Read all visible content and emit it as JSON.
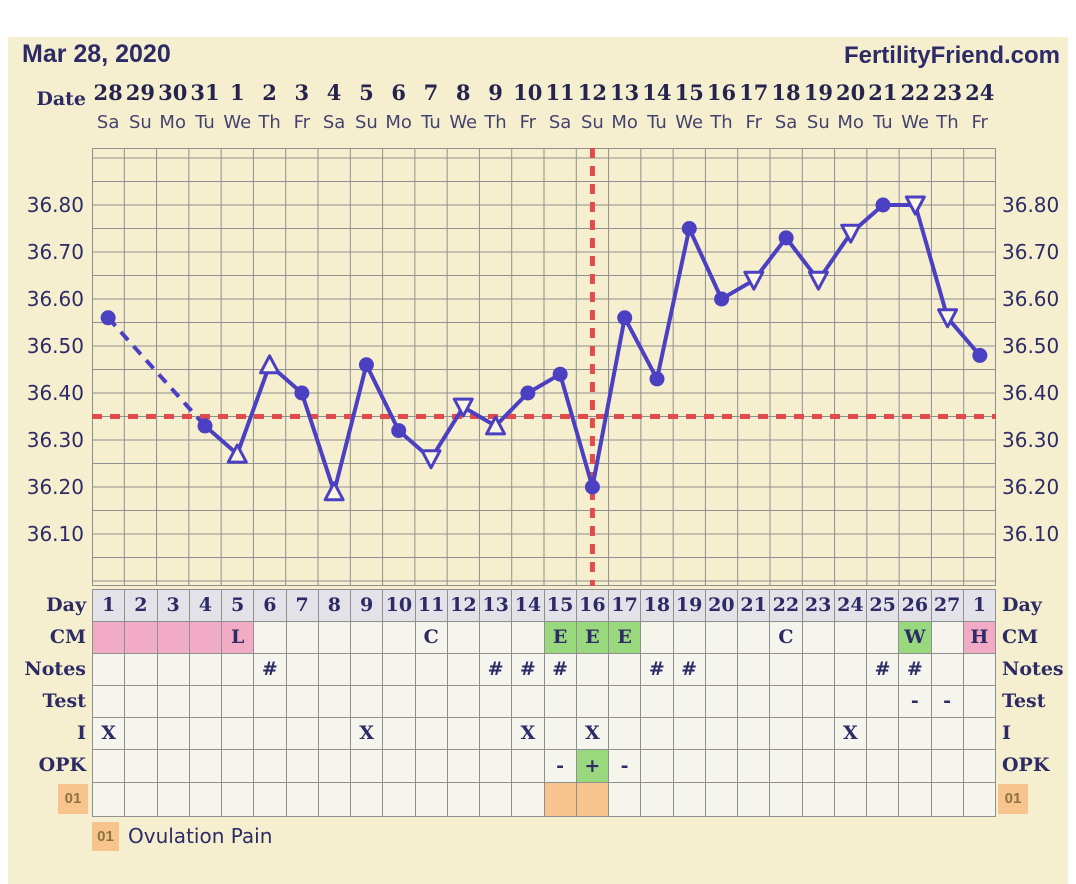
{
  "header": {
    "title": "Mar 28, 2020",
    "brand": "FertilityFriend.com"
  },
  "colors": {
    "page_bg": "#f6efcf",
    "margin_bg": "#ffffff",
    "cell_bg": "#f5f5ee",
    "day_header_bg": "#e4e2e9",
    "pink": "#f2abc4",
    "green": "#99d87d",
    "orange": "#f8c48e",
    "grid": "#8f8f8f",
    "line": "#4c40c2",
    "marker_open_fill": "#fbf6e3",
    "red": "#e14b4b",
    "navy": "#2d2b66"
  },
  "chart_data": {
    "type": "line",
    "x_axis": {
      "label": "Date",
      "dates": [
        "28",
        "29",
        "30",
        "31",
        "1",
        "2",
        "3",
        "4",
        "5",
        "6",
        "7",
        "8",
        "9",
        "10",
        "11",
        "12",
        "13",
        "14",
        "15",
        "16",
        "17",
        "18",
        "19",
        "20",
        "21",
        "22",
        "23",
        "24"
      ],
      "weekdays": [
        "Sa",
        "Su",
        "Mo",
        "Tu",
        "We",
        "Th",
        "Fr",
        "Sa",
        "Su",
        "Mo",
        "Tu",
        "We",
        "Th",
        "Fr",
        "Sa",
        "Su",
        "Mo",
        "Tu",
        "We",
        "Th",
        "Fr",
        "Sa",
        "Su",
        "Mo",
        "Tu",
        "We",
        "Th",
        "Fr"
      ]
    },
    "y_axis": {
      "tick_labels": [
        "36.80",
        "36.70",
        "36.60",
        "36.50",
        "36.40",
        "36.30",
        "36.20",
        "36.10"
      ],
      "ylim": [
        36.0,
        36.92
      ],
      "grid_step": 0.05,
      "labels_on_both_sides": true
    },
    "coverline_temp": 36.35,
    "ovulation_line_day": 16,
    "missing_days": [
      2,
      3
    ],
    "dashed_segment_days": [
      1,
      4
    ],
    "points": [
      {
        "day": 1,
        "temp": 36.56,
        "marker": "circle"
      },
      {
        "day": 4,
        "temp": 36.33,
        "marker": "circle"
      },
      {
        "day": 5,
        "temp": 36.27,
        "marker": "triangle-up"
      },
      {
        "day": 6,
        "temp": 36.46,
        "marker": "triangle-up"
      },
      {
        "day": 7,
        "temp": 36.4,
        "marker": "circle"
      },
      {
        "day": 8,
        "temp": 36.19,
        "marker": "triangle-up"
      },
      {
        "day": 9,
        "temp": 36.46,
        "marker": "circle"
      },
      {
        "day": 10,
        "temp": 36.32,
        "marker": "circle"
      },
      {
        "day": 11,
        "temp": 36.26,
        "marker": "triangle-down"
      },
      {
        "day": 12,
        "temp": 36.37,
        "marker": "triangle-down"
      },
      {
        "day": 13,
        "temp": 36.33,
        "marker": "triangle-up"
      },
      {
        "day": 14,
        "temp": 36.4,
        "marker": "circle"
      },
      {
        "day": 15,
        "temp": 36.44,
        "marker": "circle"
      },
      {
        "day": 16,
        "temp": 36.2,
        "marker": "circle"
      },
      {
        "day": 17,
        "temp": 36.56,
        "marker": "circle"
      },
      {
        "day": 18,
        "temp": 36.43,
        "marker": "circle"
      },
      {
        "day": 19,
        "temp": 36.75,
        "marker": "circle"
      },
      {
        "day": 20,
        "temp": 36.6,
        "marker": "circle"
      },
      {
        "day": 21,
        "temp": 36.64,
        "marker": "triangle-down"
      },
      {
        "day": 22,
        "temp": 36.73,
        "marker": "circle"
      },
      {
        "day": 23,
        "temp": 36.64,
        "marker": "triangle-down"
      },
      {
        "day": 24,
        "temp": 36.74,
        "marker": "triangle-down"
      },
      {
        "day": 25,
        "temp": 36.8,
        "marker": "circle"
      },
      {
        "day": 26,
        "temp": 36.8,
        "marker": "triangle-down"
      },
      {
        "day": 27,
        "temp": 36.56,
        "marker": "triangle-down"
      },
      {
        "day": 28,
        "temp": 36.48,
        "marker": "circle"
      }
    ]
  },
  "table": {
    "row_labels": [
      "Day",
      "CM",
      "Notes",
      "Test",
      "I",
      "OPK"
    ],
    "custom_row_label": "01",
    "day_row": [
      "1",
      "2",
      "3",
      "4",
      "5",
      "6",
      "7",
      "8",
      "9",
      "10",
      "11",
      "12",
      "13",
      "14",
      "15",
      "16",
      "17",
      "18",
      "19",
      "20",
      "21",
      "22",
      "23",
      "24",
      "25",
      "26",
      "27",
      "1"
    ],
    "cm_row": [
      {
        "bg": "pink"
      },
      {
        "bg": "pink"
      },
      {
        "bg": "pink"
      },
      {
        "bg": "pink"
      },
      {
        "t": "L",
        "bg": "pink"
      },
      {},
      {},
      {},
      {},
      {},
      {
        "t": "C"
      },
      {},
      {},
      {},
      {
        "t": "E",
        "bg": "green"
      },
      {
        "t": "E",
        "bg": "green"
      },
      {
        "t": "E",
        "bg": "green"
      },
      {},
      {},
      {},
      {},
      {
        "t": "C"
      },
      {},
      {},
      {},
      {
        "t": "W",
        "bg": "green"
      },
      {},
      {
        "t": "H",
        "bg": "pink"
      }
    ],
    "notes_row": [
      "",
      "",
      "",
      "",
      "",
      "#",
      "",
      "",
      "",
      "",
      "",
      "",
      "#",
      "#",
      "#",
      "",
      "",
      "#",
      "#",
      "",
      "",
      "",
      "",
      "",
      "#",
      "#",
      "",
      ""
    ],
    "test_row": [
      "",
      "",
      "",
      "",
      "",
      "",
      "",
      "",
      "",
      "",
      "",
      "",
      "",
      "",
      "",
      "",
      "",
      "",
      "",
      "",
      "",
      "",
      "",
      "",
      "",
      "-",
      "-",
      ""
    ],
    "i_row": [
      "X",
      "",
      "",
      "",
      "",
      "",
      "",
      "",
      "X",
      "",
      "",
      "",
      "",
      "X",
      "",
      "X",
      "",
      "",
      "",
      "",
      "",
      "",
      "",
      "X",
      "",
      "",
      "",
      ""
    ],
    "opk_row": [
      {},
      {},
      {},
      {},
      {},
      {},
      {},
      {},
      {},
      {},
      {},
      {},
      {},
      {},
      {
        "t": "-"
      },
      {
        "t": "+",
        "bg": "green"
      },
      {
        "t": "-"
      },
      {},
      {},
      {},
      {},
      {},
      {},
      {},
      {},
      {},
      {},
      {}
    ],
    "custom_row": [
      {},
      {},
      {},
      {},
      {},
      {},
      {},
      {},
      {},
      {},
      {},
      {},
      {},
      {},
      {
        "bg": "orange"
      },
      {
        "bg": "orange"
      },
      {},
      {},
      {},
      {},
      {},
      {},
      {},
      {},
      {},
      {},
      {},
      {}
    ]
  },
  "legend": {
    "code": "01",
    "label": "Ovulation Pain"
  }
}
